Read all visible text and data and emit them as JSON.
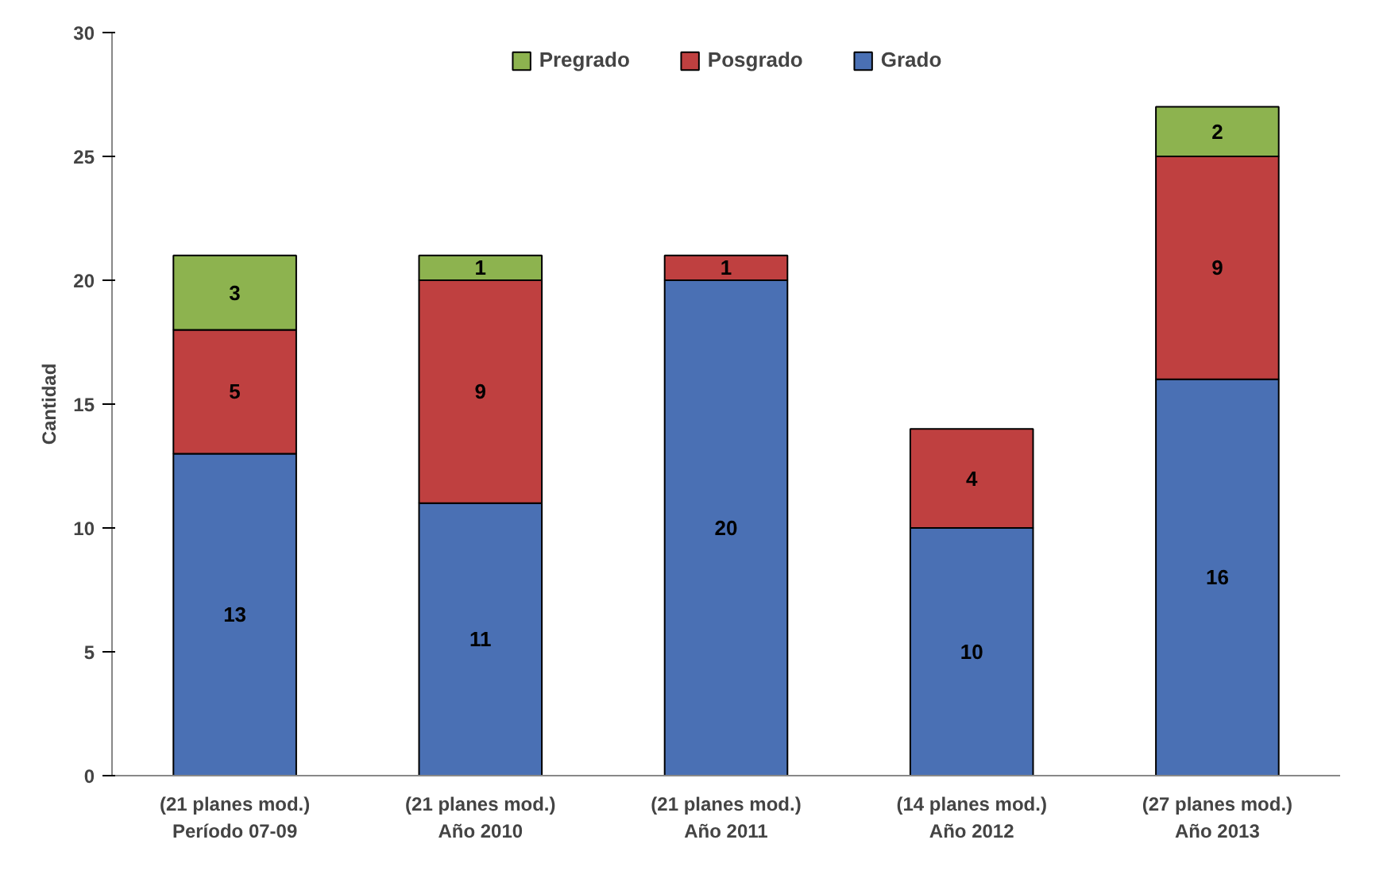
{
  "chart_data": {
    "type": "bar",
    "stacked": true,
    "ylabel": "Cantidad",
    "categories": [
      "(21 planes mod.)\nPeríodo 07-09",
      "(21 planes mod.)\nAño 2010",
      "(21 planes mod.)\nAño 2011",
      "(14 planes mod.)\nAño 2012",
      "(27 planes mod.)\nAño 2013"
    ],
    "series": [
      {
        "name": "Grado",
        "color": "#4a70b4",
        "values": [
          13,
          11,
          20,
          10,
          16
        ]
      },
      {
        "name": "Posgrado",
        "color": "#bf4040",
        "values": [
          5,
          9,
          1,
          4,
          9
        ]
      },
      {
        "name": "Pregrado",
        "color": "#8db34f",
        "values": [
          3,
          1,
          null,
          null,
          2
        ]
      }
    ],
    "ylim": [
      0,
      30
    ],
    "yticks": [
      0,
      5,
      10,
      15,
      20,
      25,
      30
    ],
    "grid": false,
    "legend": "top",
    "data_labels": true
  }
}
